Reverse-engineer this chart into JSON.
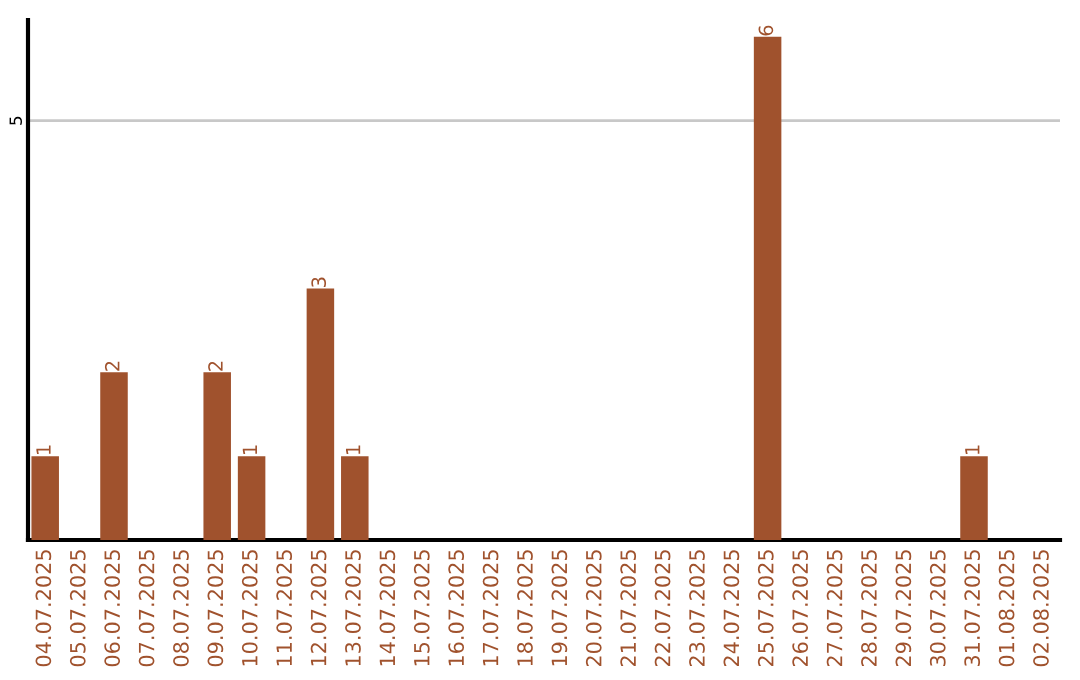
{
  "chart_data": {
    "type": "bar",
    "categories": [
      "04.07.2025",
      "05.07.2025",
      "06.07.2025",
      "07.07.2025",
      "08.07.2025",
      "09.07.2025",
      "10.07.2025",
      "11.07.2025",
      "12.07.2025",
      "13.07.2025",
      "14.07.2025",
      "15.07.2025",
      "16.07.2025",
      "17.07.2025",
      "18.07.2025",
      "19.07.2025",
      "20.07.2025",
      "21.07.2025",
      "22.07.2025",
      "23.07.2025",
      "24.07.2025",
      "25.07.2025",
      "26.07.2025",
      "27.07.2025",
      "28.07.2025",
      "29.07.2025",
      "30.07.2025",
      "31.07.2025",
      "01.08.2025",
      "02.08.2025"
    ],
    "values": [
      1,
      0,
      2,
      0,
      0,
      2,
      1,
      0,
      3,
      1,
      0,
      0,
      0,
      0,
      0,
      0,
      0,
      0,
      0,
      0,
      0,
      6,
      0,
      0,
      0,
      0,
      0,
      1,
      0,
      0
    ],
    "value_labels": [
      "1",
      null,
      "2",
      null,
      null,
      "2",
      "1",
      null,
      "3",
      "1",
      null,
      null,
      null,
      null,
      null,
      null,
      null,
      null,
      null,
      null,
      null,
      "6",
      null,
      null,
      null,
      null,
      null,
      "1",
      null,
      null
    ],
    "color": "#a0522d",
    "ylim": [
      0,
      6.2
    ],
    "yticks": [
      5
    ],
    "grid": "y"
  }
}
